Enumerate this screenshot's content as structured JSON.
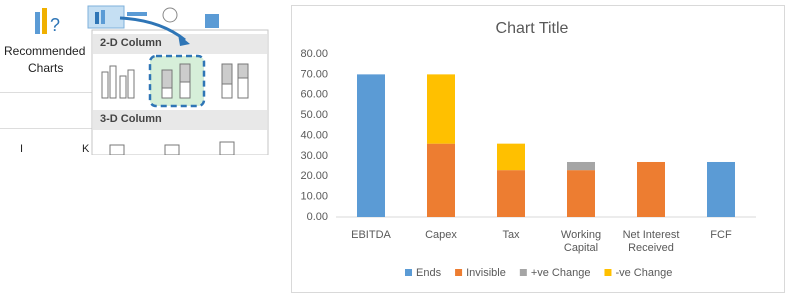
{
  "ribbon": {
    "recommended": "Recommended",
    "charts": "Charts",
    "section_2d": "2-D Column",
    "section_3d": "3-D Column",
    "col_i": "I",
    "col_k": "K"
  },
  "chart_data": {
    "type": "stacked-bar",
    "title": "Chart Title",
    "categories": [
      "EBITDA",
      "Capex",
      "Tax",
      "Working Capital",
      "Net Interest Received",
      "FCF"
    ],
    "series": [
      {
        "name": "Ends",
        "color": "#5b9bd5",
        "values": [
          70,
          null,
          null,
          null,
          null,
          27
        ]
      },
      {
        "name": "Invisible",
        "color": "#ed7d31",
        "values": [
          null,
          36,
          23,
          23,
          27,
          null
        ]
      },
      {
        "name": "+ve Change",
        "color": "#a5a5a5",
        "values": [
          null,
          null,
          null,
          4,
          null,
          null
        ]
      },
      {
        "name": "-ve Change",
        "color": "#ffc000",
        "values": [
          null,
          34,
          13,
          null,
          null,
          null
        ]
      }
    ],
    "ylim": [
      0,
      80
    ],
    "yticks": [
      {
        "value": 0,
        "label": "0.00"
      },
      {
        "value": 10,
        "label": "10.00"
      },
      {
        "value": 20,
        "label": "20.00"
      },
      {
        "value": 30,
        "label": "30.00"
      },
      {
        "value": 40,
        "label": "40.00"
      },
      {
        "value": 50,
        "label": "50.00"
      },
      {
        "value": 60,
        "label": "60.00"
      },
      {
        "value": 70,
        "label": "70.00"
      },
      {
        "value": 80,
        "label": "80.00"
      }
    ],
    "grid": false,
    "legend": "bottom"
  }
}
